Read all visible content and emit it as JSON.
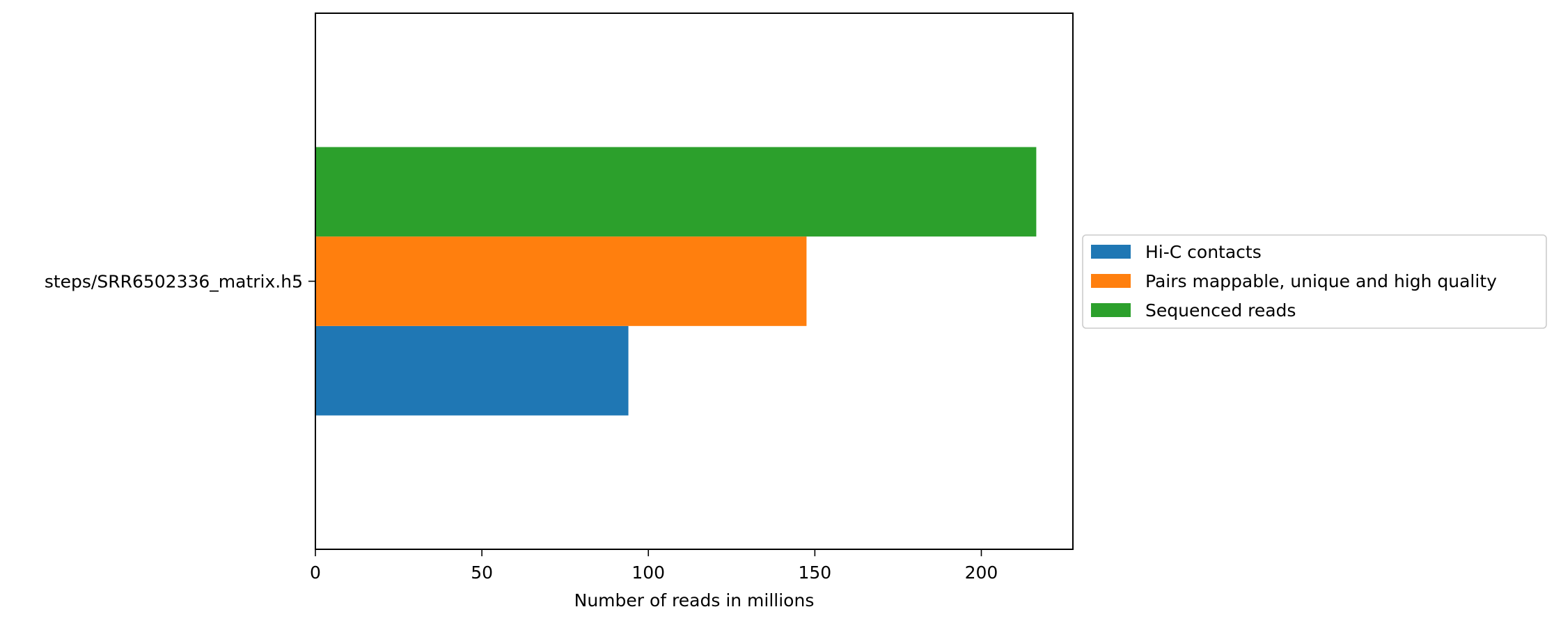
{
  "chart_data": {
    "type": "bar",
    "orientation": "horizontal",
    "categories": [
      "steps/SRR6502336_matrix.h5"
    ],
    "series": [
      {
        "name": "Hi-C contacts",
        "values": [
          94
        ],
        "color": "#1f77b4"
      },
      {
        "name": "Pairs mappable, unique and high quality",
        "values": [
          147.5
        ],
        "color": "#ff7f0e"
      },
      {
        "name": "Sequenced reads",
        "values": [
          216.5
        ],
        "color": "#2ca02c"
      }
    ],
    "xlabel": "Number of reads in millions",
    "ylabel": "",
    "xlim": [
      0,
      227.5
    ],
    "xticks": [
      "0",
      "50",
      "100",
      "150",
      "200"
    ],
    "grid": false,
    "legend_position": "right, outside plot area"
  }
}
